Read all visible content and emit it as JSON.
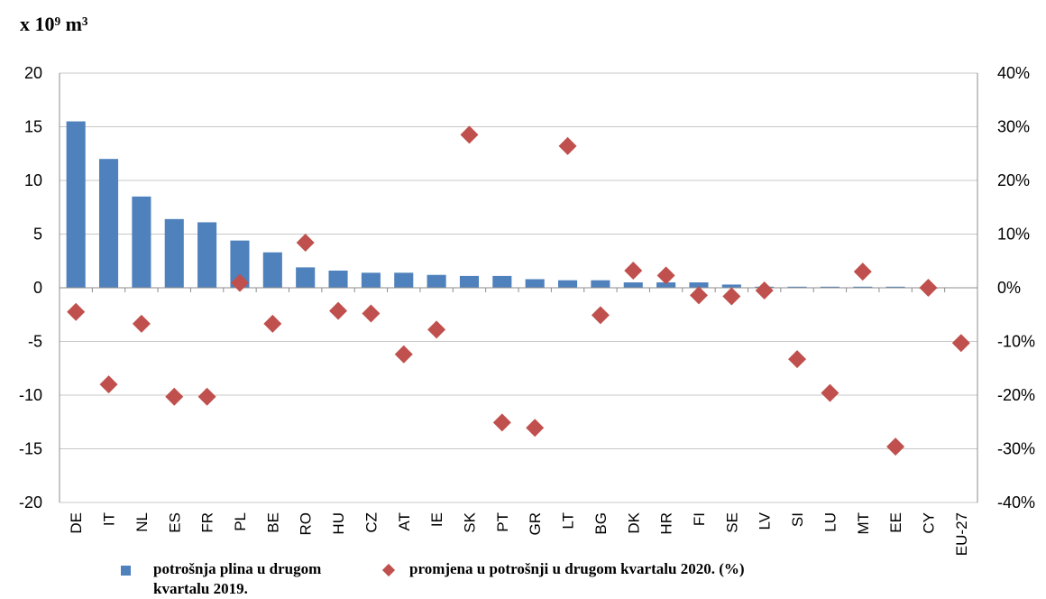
{
  "unit_label": "x 10⁹ m³",
  "chart_data": {
    "type": "bar",
    "categories": [
      "DE",
      "IT",
      "NL",
      "ES",
      "FR",
      "PL",
      "BE",
      "RO",
      "HU",
      "CZ",
      "AT",
      "IE",
      "SK",
      "PT",
      "GR",
      "LT",
      "BG",
      "DK",
      "HR",
      "FI",
      "SE",
      "LV",
      "SI",
      "LU",
      "MT",
      "EE",
      "CY",
      "EU-27"
    ],
    "series": [
      {
        "name": "potrošnja plina u drugom kvartalu 2019.",
        "type": "bar",
        "axis": "left",
        "color": "#4f81bd",
        "values": [
          15.5,
          12.0,
          8.5,
          6.4,
          6.1,
          4.4,
          3.3,
          1.9,
          1.6,
          1.4,
          1.4,
          1.2,
          1.1,
          1.1,
          0.8,
          0.7,
          0.7,
          0.5,
          0.5,
          0.5,
          0.3,
          0.1,
          0.1,
          0.1,
          0.1,
          0.1,
          0.0,
          null
        ]
      },
      {
        "name": "promjena u potrošnji u drugom kvartalu 2020. (%)",
        "type": "scatter",
        "marker": "diamond",
        "axis": "right",
        "color": "#c0504d",
        "values": [
          -4.5,
          -18,
          -6.7,
          -20.3,
          -20.3,
          0.9,
          -6.7,
          8.4,
          -4.3,
          -4.8,
          -12.4,
          -7.8,
          28.5,
          -25.1,
          -26.1,
          26.4,
          -5.1,
          3.2,
          2.3,
          -1.4,
          -1.6,
          -0.5,
          -13.3,
          -19.6,
          3.0,
          -29.6,
          0.0,
          -10.3
        ]
      }
    ],
    "y_left": {
      "min": -20,
      "max": 20,
      "ticks": [
        "20",
        "15",
        "10",
        "5",
        "0",
        "-5",
        "-10",
        "-15",
        "-20"
      ]
    },
    "y_right": {
      "min": -40,
      "max": 40,
      "ticks": [
        "40%",
        "30%",
        "20%",
        "10%",
        "0%",
        "-10%",
        "-20%",
        "-30%",
        "-40%"
      ]
    },
    "grid": "horizontal",
    "legend_position": "bottom"
  },
  "legend": {
    "bar_label": "potrošnja plina u drugom kvartalu 2019.",
    "diamond_label": "promjena u potrošnji u drugom kvartalu 2020. (%)"
  }
}
